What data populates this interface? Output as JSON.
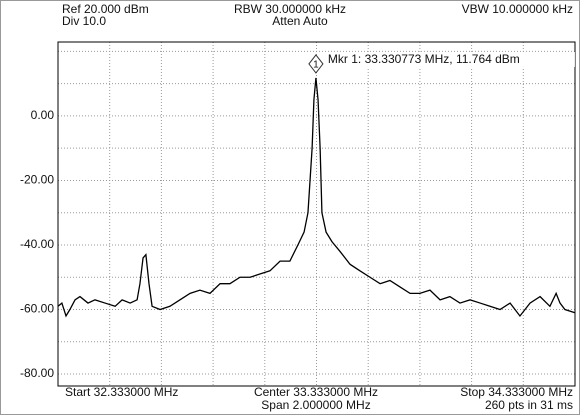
{
  "chart_data": {
    "type": "line",
    "header": {
      "ref": "Ref 20.000 dBm",
      "div": "Div 10.0",
      "rbw": "RBW 30.000000 kHz",
      "atten": "Atten Auto",
      "vbw": "VBW 10.000000 kHz"
    },
    "footer": {
      "start": "Start 32.333000 MHz",
      "center": "Center 33.333000 MHz",
      "span": "Span 2.000000 MHz",
      "stop": "Stop 34.333000 MHz",
      "points": "260 pts in 31 ms"
    },
    "marker": {
      "label": "1",
      "text": "Mkr 1: 33.330773 MHz, 11.764 dBm",
      "x": 33.330773,
      "y": 11.764
    },
    "xlim": [
      32.333,
      34.333
    ],
    "xgrid": [
      32.533,
      32.733,
      32.933,
      33.133,
      33.333,
      33.533,
      33.733,
      33.933,
      34.133
    ],
    "ylim": [
      -83.7,
      22.9
    ],
    "yticks": [
      {
        "value": 0,
        "label": "0.00"
      },
      {
        "value": -20,
        "label": "-20.00"
      },
      {
        "value": -40,
        "label": "-40.00"
      },
      {
        "value": -60,
        "label": "-60.00"
      },
      {
        "value": -80,
        "label": "-80.00"
      }
    ],
    "yminorticks": [
      20,
      10,
      -10,
      -30,
      -50,
      -70
    ],
    "grid": true,
    "series": [
      {
        "color": "#000000",
        "x": [
          32.333,
          32.348,
          32.364,
          32.379,
          32.399,
          32.418,
          32.449,
          32.476,
          32.515,
          32.554,
          32.581,
          32.612,
          32.639,
          32.65,
          32.662,
          32.673,
          32.685,
          32.697,
          32.728,
          32.766,
          32.805,
          32.844,
          32.882,
          32.921,
          32.96,
          32.998,
          33.037,
          33.076,
          33.114,
          33.153,
          33.192,
          33.23,
          33.261,
          33.285,
          33.3,
          33.316,
          33.323,
          33.330773,
          33.339,
          33.347,
          33.354,
          33.37,
          33.393,
          33.424,
          33.463,
          33.501,
          33.54,
          33.579,
          33.617,
          33.656,
          33.695,
          33.733,
          33.772,
          33.811,
          33.849,
          33.888,
          33.927,
          33.966,
          34.004,
          34.043,
          34.082,
          34.12,
          34.159,
          34.198,
          34.236,
          34.26,
          34.275,
          34.294,
          34.333
        ],
        "values": [
          -59,
          -58,
          -62,
          -60,
          -57,
          -56,
          -58,
          -57,
          -58,
          -59,
          -57,
          -58,
          -57,
          -52,
          -44,
          -43,
          -52,
          -59,
          -60,
          -59,
          -57,
          -55,
          -54,
          -55,
          -52,
          -52,
          -50,
          -50,
          -49,
          -48,
          -45,
          -45,
          -40,
          -36,
          -30,
          -10,
          5,
          11.764,
          5,
          -10,
          -30,
          -36,
          -39,
          -42,
          -46,
          -48,
          -50,
          -52,
          -51,
          -53,
          -55,
          -55,
          -54,
          -57,
          -56,
          -58,
          -57,
          -58,
          -59,
          -60,
          -58,
          -62,
          -58,
          -56,
          -59,
          -55,
          -58,
          -60,
          -61
        ]
      }
    ]
  }
}
